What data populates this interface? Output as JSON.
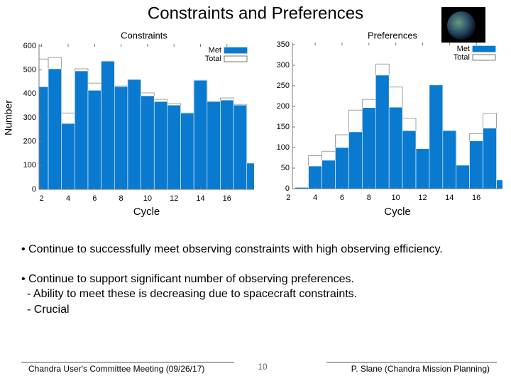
{
  "title": "Constraints and Preferences",
  "chart_data": [
    {
      "type": "bar",
      "title": "Constraints",
      "xlabel": "Cycle",
      "ylabel": "Number",
      "x": [
        2,
        3,
        4,
        5,
        6,
        7,
        8,
        9,
        10,
        11,
        12,
        13,
        14,
        15,
        16,
        17,
        18
      ],
      "series": [
        {
          "name": "Met",
          "color": "#0a7ad0",
          "values": [
            430,
            505,
            276,
            496,
            415,
            537,
            430,
            460,
            392,
            368,
            353,
            320,
            457,
            368,
            374,
            353,
            110
          ]
        },
        {
          "name": "Total",
          "color": "#ffffff",
          "values": [
            546,
            552,
            320,
            505,
            445,
            537,
            433,
            460,
            404,
            377,
            359,
            320,
            457,
            368,
            383,
            356,
            110
          ]
        }
      ],
      "xlim": [
        1.8,
        18.05
      ],
      "xticks": [
        2,
        4,
        6,
        8,
        10,
        12,
        14,
        16
      ],
      "ylim": [
        0,
        600
      ],
      "yticks": [
        0,
        100,
        200,
        300,
        400,
        500,
        600
      ],
      "legend": "upper right"
    },
    {
      "type": "bar",
      "title": "Preferences",
      "xlabel": "Cycle",
      "x": [
        3,
        4,
        5,
        6,
        7,
        8,
        9,
        10,
        11,
        12,
        13,
        14,
        15,
        16,
        17,
        18
      ],
      "series": [
        {
          "name": "Met",
          "color": "#0a7ad0",
          "values": [
            3,
            55,
            69,
            100,
            138,
            197,
            276,
            198,
            141,
            97,
            252,
            141,
            57,
            116,
            147,
            21
          ]
        },
        {
          "name": "Total",
          "color": "#ffffff",
          "values": [
            3,
            80,
            91,
            131,
            191,
            217,
            303,
            247,
            171,
            97,
            252,
            141,
            57,
            134,
            183,
            21
          ]
        }
      ],
      "xlim": [
        2.3,
        17.95
      ],
      "xticks": [
        2,
        4,
        6,
        8,
        10,
        12,
        14,
        16
      ],
      "ylim": [
        0,
        350
      ],
      "yticks": [
        0,
        50,
        100,
        150,
        200,
        250,
        300,
        350
      ],
      "legend": "upper right"
    }
  ],
  "bullets": [
    "• Continue to successfully meet observing constraints with high observing efficiency.",
    "• Continue to support significant number of observing preferences.",
    "- Ability to meet these is decreasing due to spacecraft constraints.",
    "- Crucial"
  ],
  "footer": {
    "left": "Chandra User's Committee Meeting (09/26/17)",
    "page": "10",
    "right": "P. Slane (Chandra Mission Planning)"
  }
}
